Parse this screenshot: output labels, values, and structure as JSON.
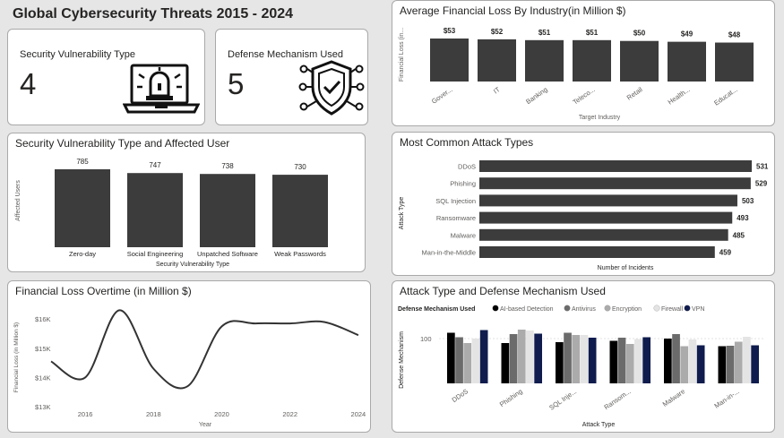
{
  "header": {
    "title": "Global Cybersecurity Threats 2015 - 2024"
  },
  "kpis": [
    {
      "label": "Security Vulnerability Type",
      "value": "4",
      "icon": "alarm-laptop-icon"
    },
    {
      "label": "Defense Mechanism Used",
      "value": "5",
      "icon": "shield-check-icon"
    }
  ],
  "chart_data": [
    {
      "id": "industry",
      "type": "bar",
      "title": "Average Financial Loss By Industry(in Million $)",
      "xlabel": "Target Industry",
      "ylabel": "Financial Loss (in...",
      "categories": [
        "Gover...",
        "IT",
        "Banking",
        "Teleco...",
        "Retail",
        "Health...",
        "Educat..."
      ],
      "values": [
        53,
        52,
        51,
        51,
        50,
        49,
        48
      ],
      "data_labels": [
        "$53",
        "$52",
        "$51",
        "$51",
        "$50",
        "$49",
        "$48"
      ],
      "ylim": [
        0,
        53
      ],
      "bar_color": "#3c3c3c"
    },
    {
      "id": "vuln",
      "type": "bar",
      "title": "Security Vulnerability Type and Affected User",
      "xlabel": "Security Vulnerability Type",
      "ylabel": "Affected Users",
      "categories": [
        "Zero-day",
        "Social Engineering",
        "Unpatched Software",
        "Weak Passwords"
      ],
      "values": [
        785,
        747,
        738,
        730
      ],
      "data_labels": [
        "785",
        "747",
        "738",
        "730"
      ],
      "ylim": [
        0,
        785
      ],
      "bar_color": "#3c3c3c"
    },
    {
      "id": "attacks",
      "type": "bar",
      "orientation": "horizontal",
      "title": "Most Common Attack Types",
      "xlabel": "Number of Incidents",
      "ylabel": "Attack Type",
      "categories": [
        "DDoS",
        "Phishing",
        "SQL Injection",
        "Ransomware",
        "Malware",
        "Man-in-the-Middle"
      ],
      "values": [
        531,
        529,
        503,
        493,
        485,
        459
      ],
      "data_labels": [
        "531",
        "529",
        "503",
        "493",
        "485",
        "459"
      ],
      "xlim": [
        0,
        531
      ],
      "bar_color": "#3c3c3c"
    },
    {
      "id": "overtime",
      "type": "line",
      "title": "Financial Loss Overtime (in Million $)",
      "xlabel": "Year",
      "ylabel": "Financial Loss (in Million $)",
      "x": [
        2015,
        2016,
        2017,
        2018,
        2019,
        2020,
        2021,
        2022,
        2023,
        2024
      ],
      "values": [
        14550,
        14000,
        16300,
        14300,
        13700,
        15750,
        15850,
        15850,
        15900,
        15450
      ],
      "ylim": [
        13000,
        16300
      ],
      "yticks": [
        13000,
        14000,
        15000,
        16000
      ],
      "ytick_labels": [
        "$13K",
        "$14K",
        "$15K",
        "$16K"
      ],
      "xticks": [
        "2016",
        "2018",
        "2020",
        "2022",
        "2024"
      ],
      "line_color": "#333333"
    },
    {
      "id": "defense",
      "type": "bar",
      "title": "Attack Type and Defense Mechanism Used",
      "xlabel": "Attack Type",
      "ylabel": "Defense Mechanism",
      "legend_title": "Defense Mechanism Used",
      "legend_position": "top-left",
      "categories": [
        "DDoS",
        "Phishing",
        "SQL Inje...",
        "Ransom...",
        "Malware",
        "Man-in-..."
      ],
      "ytick_labels": [
        "100"
      ],
      "ylim": [
        0,
        130
      ],
      "series": [
        {
          "name": "AI-based Detection",
          "color": "#000000",
          "values": [
            113,
            90,
            92,
            95,
            100,
            83
          ]
        },
        {
          "name": "Antivirus",
          "color": "#6b6b6b",
          "values": [
            103,
            110,
            113,
            102,
            110,
            84
          ]
        },
        {
          "name": "Encryption",
          "color": "#ababab",
          "values": [
            90,
            120,
            108,
            88,
            83,
            93
          ]
        },
        {
          "name": "Firewall",
          "color": "#e4e4e4",
          "values": [
            100,
            118,
            108,
            99,
            98,
            104
          ]
        },
        {
          "name": "VPN",
          "color": "#0f1c4d",
          "values": [
            119,
            111,
            102,
            103,
            85,
            85
          ]
        }
      ]
    }
  ]
}
